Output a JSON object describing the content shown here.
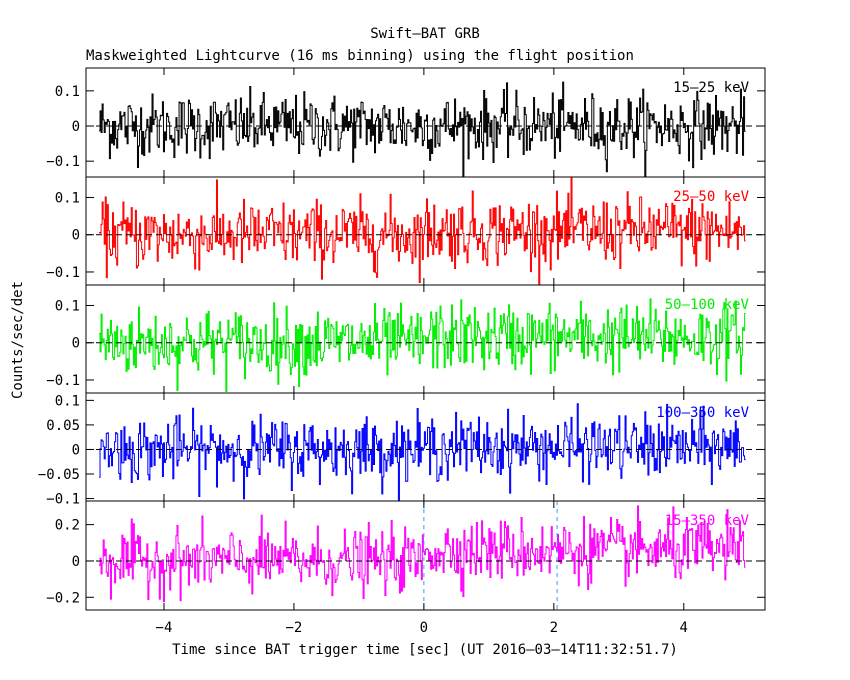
{
  "chart_data": {
    "type": "line",
    "title": "Swift–BAT GRB",
    "subtitle": "Maskweighted Lightcurve (16 ms binning) using the flight position",
    "xlabel": "Time since BAT trigger time [sec] (UT 2016–03–14T11:32:51.7)",
    "ylabel": "Counts/sec/det",
    "xlim": [
      -5.2,
      5.25
    ],
    "x_ticks": [
      "−4",
      "−2",
      "0",
      "2",
      "4"
    ],
    "x_tick_values": [
      -4,
      -2,
      0,
      2,
      4
    ],
    "bin_width_sec": 0.016,
    "x_range_data": [
      -5.0,
      4.95
    ],
    "zero_line": "dashed",
    "markers": [
      0.0,
      2.05
    ],
    "panels": [
      {
        "name": "15–25 keV",
        "color": "#000000",
        "ylim": [
          -0.145,
          0.165
        ],
        "y_ticks": [
          "0.1",
          "0",
          "−0.1"
        ],
        "y_tick_values": [
          0.1,
          0,
          -0.1
        ],
        "mean": 0.0,
        "noise_sigma": 0.045,
        "late_offset": 0.0
      },
      {
        "name": "25–50 keV",
        "color": "#ff0000",
        "ylim": [
          -0.135,
          0.155
        ],
        "y_ticks": [
          "0.1",
          "0",
          "−0.1"
        ],
        "y_tick_values": [
          0.1,
          0,
          -0.1
        ],
        "mean": 0.0,
        "noise_sigma": 0.045,
        "late_offset": 0.01
      },
      {
        "name": "50–100 keV",
        "color": "#00ee00",
        "ylim": [
          -0.135,
          0.155
        ],
        "y_ticks": [
          "0.1",
          "0",
          "−0.1"
        ],
        "y_tick_values": [
          0.1,
          0,
          -0.1
        ],
        "mean": 0.0,
        "noise_sigma": 0.045,
        "late_offset": 0.015
      },
      {
        "name": "100–350 keV",
        "color": "#0000ff",
        "ylim": [
          -0.105,
          0.115
        ],
        "y_ticks": [
          "0.1",
          "0.05",
          "0",
          "−0.05",
          "−0.1"
        ],
        "y_tick_values": [
          0.1,
          0.05,
          0,
          -0.05,
          -0.1
        ],
        "mean": 0.0,
        "noise_sigma": 0.032,
        "late_offset": 0.005
      },
      {
        "name": "15–350 keV",
        "color": "#ff00ff",
        "ylim": [
          -0.27,
          0.33
        ],
        "y_ticks": [
          "0.2",
          "0",
          "−0.2"
        ],
        "y_tick_values": [
          0.2,
          0,
          -0.2
        ],
        "mean": 0.0,
        "noise_sigma": 0.085,
        "late_offset": 0.06
      }
    ]
  }
}
